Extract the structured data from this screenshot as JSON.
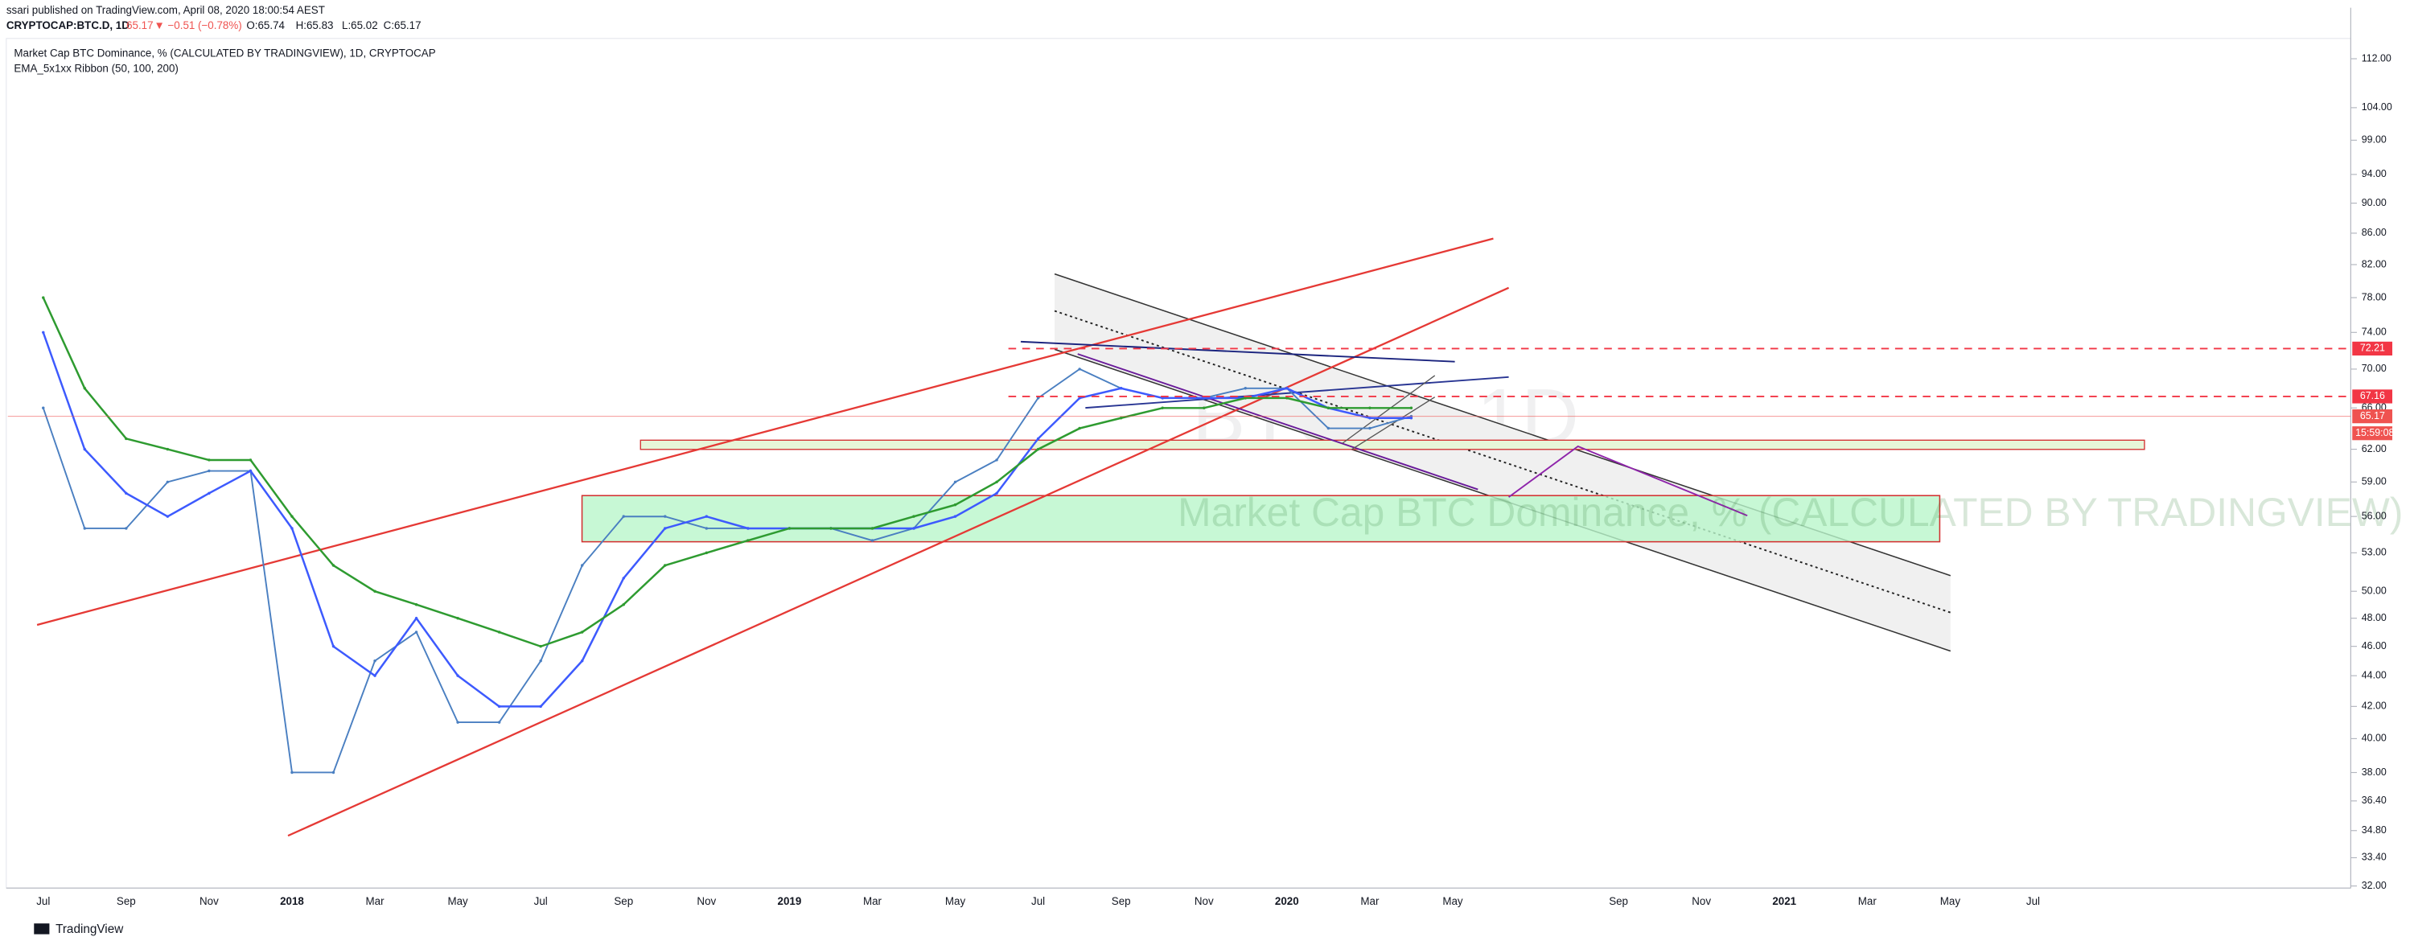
{
  "header": {
    "publisher": "ssari published on TradingView.com, April 08, 2020 18:00:54 AEST",
    "symbol": "CRYPTOCAP:BTC.D, 1D",
    "last": "65.17",
    "change": "▼ −0.51 (−0.78%)",
    "open": "O:65.74",
    "high": "H:65.83",
    "low": "L:65.02",
    "close": "C:65.17"
  },
  "chart_data": {
    "type": "line",
    "title": "Market Cap BTC Dominance, % (CALCULATED BY TRADINGVIEW), 1D, CRYPTOCAP",
    "indicator": "EMA_5x1xx Ribbon (50, 100, 200)",
    "watermark": "BTC.D, 1D",
    "watermark_subtitle": "Market Cap BTC Dominance, % (CALCULATED BY TRADINGVIEW)",
    "categories": [
      "Jul",
      null,
      "Sep",
      null,
      "Nov",
      null,
      "2018",
      null,
      "Mar",
      null,
      "May",
      null,
      "Jul",
      null,
      "Sep",
      null,
      "Nov",
      null,
      "2019",
      null,
      "Mar",
      null,
      "May",
      null,
      "Jul",
      null,
      "Sep",
      null,
      "Nov",
      null,
      "2020",
      null,
      "Mar",
      null,
      "May",
      null,
      null,
      null,
      "Sep",
      null,
      "Nov",
      null,
      "2021",
      null,
      "Mar",
      null,
      "May",
      null,
      "Jul"
    ],
    "series": [
      {
        "color": "#4a7fc1",
        "values": [
          66,
          55,
          55,
          59,
          60,
          60,
          38,
          38,
          45,
          47,
          41,
          41,
          45,
          52,
          56,
          56,
          55,
          55,
          55,
          55,
          54,
          55,
          59,
          61,
          67,
          70,
          68,
          67,
          67,
          68,
          68,
          64,
          64,
          65.17,
          null,
          null,
          null,
          null,
          null,
          null,
          null,
          null,
          null,
          null,
          null,
          null,
          null,
          null,
          null
        ]
      },
      {
        "color": "#3d5afe",
        "values": [
          74,
          62,
          58,
          56,
          58,
          60,
          55,
          46,
          44,
          48,
          44,
          42,
          42,
          45,
          51,
          55,
          56,
          55,
          55,
          55,
          55,
          55,
          56,
          58,
          63,
          67,
          68,
          67,
          67,
          67,
          68,
          66,
          65,
          65,
          null,
          null,
          null,
          null,
          null,
          null,
          null,
          null,
          null,
          null,
          null,
          null,
          null,
          null,
          null
        ]
      },
      {
        "color": "#2e9b30",
        "values": [
          78,
          68,
          63,
          62,
          61,
          61,
          56,
          52,
          50,
          49,
          48,
          47,
          46,
          47,
          49,
          52,
          53,
          54,
          55,
          55,
          55,
          56,
          57,
          59,
          62,
          64,
          65,
          66,
          66,
          67,
          67,
          66,
          66,
          66,
          null,
          null,
          null,
          null,
          null,
          null,
          null,
          null,
          null,
          null,
          null,
          null,
          null,
          null,
          null
        ]
      }
    ],
    "log_scale": true,
    "ylim": [
      31.9,
      121
    ],
    "yticks": [
      {
        "value": 112,
        "label": "112.00"
      },
      {
        "value": 104,
        "label": "104.00"
      },
      {
        "value": 99,
        "label": "99.00"
      },
      {
        "value": 94,
        "label": "94.00"
      },
      {
        "value": 90,
        "label": "90.00"
      },
      {
        "value": 86,
        "label": "86.00"
      },
      {
        "value": 82,
        "label": "82.00"
      },
      {
        "value": 78,
        "label": "78.00"
      },
      {
        "value": 74,
        "label": "74.00"
      },
      {
        "value": 70,
        "label": "70.00"
      },
      {
        "value": 66,
        "label": "66.00"
      },
      {
        "value": 62,
        "label": "62.00"
      },
      {
        "value": 59,
        "label": "59.00"
      },
      {
        "value": 56,
        "label": "56.00"
      },
      {
        "value": 53,
        "label": "53.00"
      },
      {
        "value": 50,
        "label": "50.00"
      },
      {
        "value": 48,
        "label": "48.00"
      },
      {
        "value": 46,
        "label": "46.00"
      },
      {
        "value": 44,
        "label": "44.00"
      },
      {
        "value": 42,
        "label": "42.00"
      },
      {
        "value": 40,
        "label": "40.00"
      },
      {
        "value": 38,
        "label": "38.00"
      },
      {
        "value": 36.4,
        "label": "36.40"
      },
      {
        "value": 34.8,
        "label": "34.80"
      },
      {
        "value": 33.4,
        "label": "33.40"
      },
      {
        "value": 32,
        "label": "32.00"
      }
    ],
    "price_labels": [
      {
        "value": 72.21,
        "color": "#f23645",
        "style": "dashed"
      },
      {
        "value": 67.16,
        "color": "#f23645",
        "style": "dashed"
      },
      {
        "value": 65.17,
        "color": "#ef5350",
        "style": "solid"
      }
    ],
    "countdown": "15:59:08",
    "grid": false
  },
  "footer": {
    "brand": "TradingView"
  }
}
